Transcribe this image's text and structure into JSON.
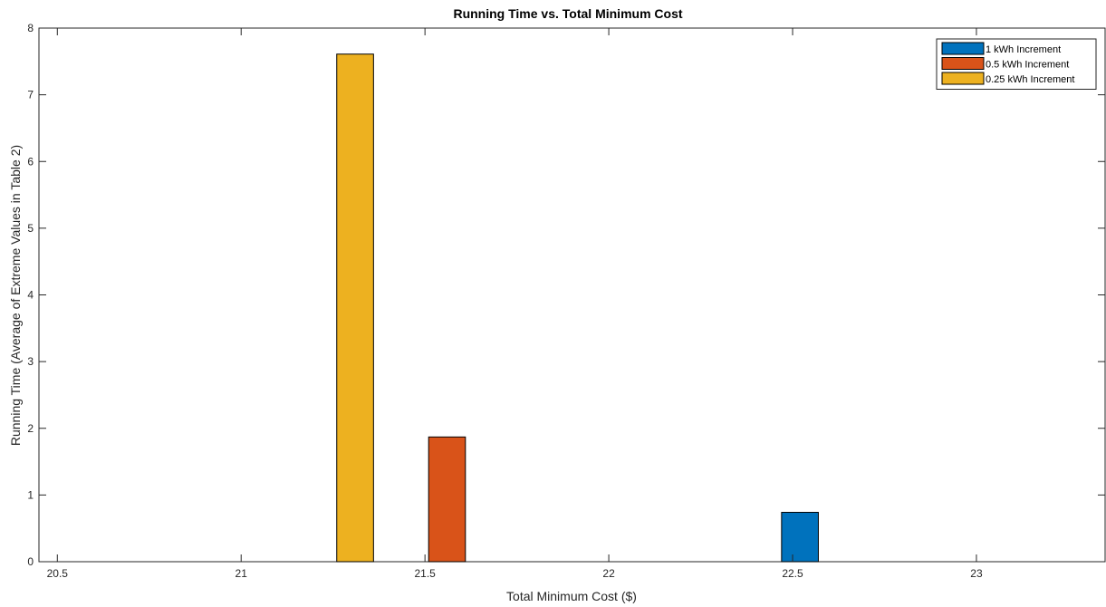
{
  "chart_data": {
    "type": "bar",
    "title": "Running Time vs. Total Minimum Cost",
    "xlabel": "Total Minimum Cost ($)",
    "ylabel": "Running Time (Average of Extreme Values in Table 2)",
    "xlim": [
      20.45,
      23.35
    ],
    "ylim": [
      0,
      8
    ],
    "xticks": [
      20.5,
      21,
      21.5,
      22,
      22.5,
      23
    ],
    "xtick_labels": [
      "20.5",
      "21",
      "21.5",
      "22",
      "22.5",
      "23"
    ],
    "yticks": [
      0,
      1,
      2,
      3,
      4,
      5,
      6,
      7,
      8
    ],
    "ytick_labels": [
      "0",
      "1",
      "2",
      "3",
      "4",
      "5",
      "6",
      "7",
      "8"
    ],
    "bar_width": 0.1,
    "legend_position": "top-right",
    "grid": false,
    "series": [
      {
        "name": "1 kWh Increment",
        "color": "#0072BD",
        "x": [
          22.52
        ],
        "values": [
          0.74
        ]
      },
      {
        "name": "0.5 kWh Increment",
        "color": "#D95319",
        "x": [
          21.56
        ],
        "values": [
          1.87
        ]
      },
      {
        "name": "0.25 kWh Increment",
        "color": "#EDB120",
        "x": [
          21.31
        ],
        "values": [
          7.61
        ]
      }
    ]
  }
}
